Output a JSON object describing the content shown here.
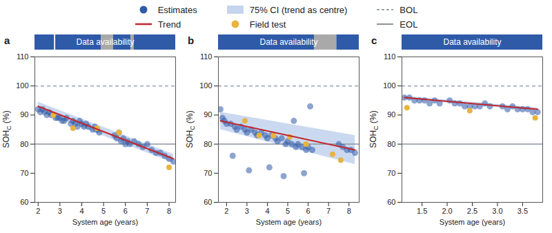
{
  "chart_data": [
    {
      "type": "scatter",
      "panel": "a",
      "legend": "top",
      "x_label": "System age (years)",
      "y_label": {
        "text": "SOH",
        "subscript": "C",
        "suffix": " (%)"
      },
      "xlim": [
        1.85,
        8.3
      ],
      "xticks": [
        2,
        3,
        4,
        5,
        6,
        7,
        8
      ],
      "ylim": [
        60,
        110
      ],
      "yticks": [
        60,
        70,
        80,
        90,
        100,
        110
      ],
      "availability": {
        "label": "Data availability",
        "segments": [
          [
            1.85,
            2.75
          ],
          [
            2.75,
            2.8
          ],
          [
            2.8,
            4.9
          ],
          [
            4.9,
            5.45
          ],
          [
            5.45,
            6.25
          ],
          [
            6.25,
            6.4
          ],
          [
            6.4,
            8.3
          ]
        ],
        "colors": [
          "#2f5aa8",
          "#ffffff",
          "#2f5aa8",
          "#a9a9a9",
          "#2f5aa8",
          "#a9a9a9",
          "#2f5aa8"
        ]
      },
      "series": [
        {
          "name": "Estimates",
          "type": "scatter",
          "color": "#2f5aa8",
          "marker": "circle",
          "x": [
            2.0,
            2.1,
            2.2,
            2.3,
            2.4,
            2.5,
            2.6,
            2.7,
            2.8,
            2.9,
            3.0,
            3.1,
            3.2,
            3.3,
            3.5,
            3.6,
            3.7,
            3.8,
            3.9,
            4.0,
            4.1,
            4.2,
            4.3,
            4.5,
            4.6,
            4.7,
            4.8,
            5.5,
            5.6,
            5.7,
            5.8,
            5.9,
            6.0,
            6.1,
            6.2,
            6.4,
            6.6,
            6.8,
            7.0,
            7.2,
            7.4,
            7.6,
            7.8,
            8.0,
            8.2
          ],
          "values": [
            92,
            91,
            92,
            91,
            90,
            91,
            90,
            90,
            89,
            89,
            89,
            88,
            88,
            89,
            87,
            88,
            87,
            86,
            88,
            87,
            86,
            87,
            86,
            85,
            86,
            85,
            84,
            83,
            82,
            84,
            81,
            82,
            80,
            81,
            80,
            81,
            80,
            79,
            80,
            78,
            77,
            77,
            76,
            75,
            74
          ]
        },
        {
          "name": "75% CI (trend as centre)",
          "type": "band",
          "color": "#c5d5ee",
          "x": [
            2.0,
            8.2
          ],
          "lower": [
            91.5,
            73.5
          ],
          "upper": [
            94.5,
            76.5
          ]
        },
        {
          "name": "BOL",
          "type": "rule",
          "color": "#9aa3b0",
          "line_style": "dashed",
          "values": [
            100
          ]
        },
        {
          "name": "Trend",
          "type": "line",
          "color": "#c1272d",
          "x": [
            2.0,
            8.2
          ],
          "values": [
            93,
            75
          ]
        },
        {
          "name": "Field test",
          "type": "scatter",
          "color": "#e8b33f",
          "marker": "circle",
          "x": [
            2.7,
            3.6,
            4.7,
            5.7,
            8.0
          ],
          "values": [
            90,
            85.5,
            85.5,
            84,
            72
          ]
        },
        {
          "name": "EOL",
          "type": "rule",
          "color": "#8c939e",
          "line_style": "solid",
          "values": [
            80
          ]
        }
      ]
    },
    {
      "type": "scatter",
      "panel": "b",
      "x_label": "System age (years)",
      "y_label": {
        "text": "SOH",
        "subscript": "C",
        "suffix": " (%)"
      },
      "xlim": [
        1.6,
        8.5
      ],
      "xticks": [
        2,
        3,
        4,
        5,
        6,
        7,
        8
      ],
      "ylim": [
        60,
        110
      ],
      "yticks": [
        60,
        70,
        80,
        90,
        100,
        110
      ],
      "availability": {
        "label": "Data availability",
        "segments": [
          [
            1.6,
            6.3
          ],
          [
            6.3,
            7.4
          ],
          [
            7.4,
            8.5
          ]
        ],
        "colors": [
          "#2f5aa8",
          "#a9a9a9",
          "#2f5aa8"
        ]
      },
      "series": [
        {
          "name": "Estimates",
          "type": "scatter",
          "color": "#2f5aa8",
          "marker": "circle",
          "x": [
            1.7,
            1.8,
            1.9,
            2.0,
            2.2,
            2.4,
            2.5,
            2.7,
            2.9,
            3.0,
            3.2,
            3.4,
            3.5,
            3.7,
            3.9,
            4.0,
            4.2,
            4.4,
            4.5,
            4.7,
            4.9,
            5.0,
            5.2,
            5.4,
            5.5,
            5.7,
            5.9,
            6.0,
            6.2,
            7.5,
            7.7,
            7.9,
            8.1,
            8.3,
            2.3,
            3.1,
            4.1,
            4.8,
            5.3,
            5.8,
            6.1
          ],
          "values": [
            92,
            89,
            88,
            87,
            87,
            86,
            85,
            86,
            85,
            84,
            85,
            84,
            83,
            84,
            83,
            82,
            83,
            82,
            81,
            82,
            80,
            81,
            80,
            79,
            80,
            79,
            78,
            79,
            78,
            80,
            79,
            78,
            78,
            77,
            76,
            71,
            72,
            69,
            88,
            70,
            93
          ]
        },
        {
          "name": "75% CI (trend as centre)",
          "type": "band",
          "color": "#c5d5ee",
          "x": [
            1.7,
            8.3
          ],
          "lower": [
            85,
            73
          ],
          "upper": [
            91,
            83
          ]
        },
        {
          "name": "BOL",
          "type": "rule",
          "color": "#9aa3b0",
          "line_style": "dashed",
          "values": [
            100
          ]
        },
        {
          "name": "Trend",
          "type": "line",
          "color": "#c1272d",
          "x": [
            1.7,
            8.3
          ],
          "values": [
            88,
            78
          ]
        },
        {
          "name": "Field test",
          "type": "scatter",
          "color": "#e8b33f",
          "marker": "circle",
          "x": [
            2.9,
            3.6,
            4.3,
            5.1,
            5.9,
            7.2,
            7.6
          ],
          "values": [
            88,
            83,
            83,
            82.5,
            80,
            76.5,
            74.5
          ]
        },
        {
          "name": "EOL",
          "type": "rule",
          "color": "#8c939e",
          "line_style": "solid",
          "values": [
            80
          ]
        }
      ]
    },
    {
      "type": "scatter",
      "panel": "c",
      "x_label": "System age (years)",
      "y_label": {
        "text": "SOH",
        "subscript": "C",
        "suffix": " (%)"
      },
      "xlim": [
        1.1,
        3.9
      ],
      "xticks": [
        1.5,
        {
          "value": 2,
          "label": "2.0"
        },
        2.5,
        {
          "value": 3,
          "label": "3.0"
        },
        3.5
      ],
      "ylim": [
        60,
        110
      ],
      "yticks": [
        60,
        70,
        80,
        90,
        100,
        110
      ],
      "availability": {
        "label": "Data availability",
        "segments": [
          [
            1.1,
            3.9
          ]
        ],
        "colors": [
          "#2f5aa8"
        ]
      },
      "series": [
        {
          "name": "Estimates",
          "type": "scatter",
          "color": "#2f5aa8",
          "marker": "circle",
          "x": [
            1.15,
            1.25,
            1.35,
            1.45,
            1.55,
            1.65,
            1.75,
            1.85,
            2.05,
            2.15,
            2.25,
            2.35,
            2.45,
            2.55,
            2.65,
            2.75,
            2.85,
            3.1,
            3.2,
            3.3,
            3.4,
            3.5,
            3.6,
            3.7,
            3.8
          ],
          "values": [
            96,
            96,
            95,
            95,
            95,
            94,
            95,
            94,
            95,
            94,
            94,
            93,
            93,
            93,
            93,
            94,
            93,
            93,
            92,
            93,
            92,
            92,
            92,
            91,
            91
          ]
        },
        {
          "name": "75% CI (trend as centre)",
          "type": "band",
          "color": "#c5d5ee",
          "x": [
            1.15,
            3.8
          ],
          "lower": [
            95.5,
            91.5
          ],
          "upper": [
            96.5,
            92.5
          ]
        },
        {
          "name": "BOL",
          "type": "rule",
          "color": "#9aa3b0",
          "line_style": "dashed",
          "values": [
            100
          ]
        },
        {
          "name": "Trend",
          "type": "line",
          "color": "#c1272d",
          "x": [
            1.15,
            3.8
          ],
          "values": [
            96,
            92
          ]
        },
        {
          "name": "Field test",
          "type": "scatter",
          "color": "#e8b33f",
          "marker": "circle",
          "x": [
            1.2,
            2.45,
            3.75
          ],
          "values": [
            92.5,
            91.5,
            89
          ]
        },
        {
          "name": "EOL",
          "type": "rule",
          "color": "#8c939e",
          "line_style": "solid",
          "values": [
            80
          ]
        }
      ]
    }
  ]
}
